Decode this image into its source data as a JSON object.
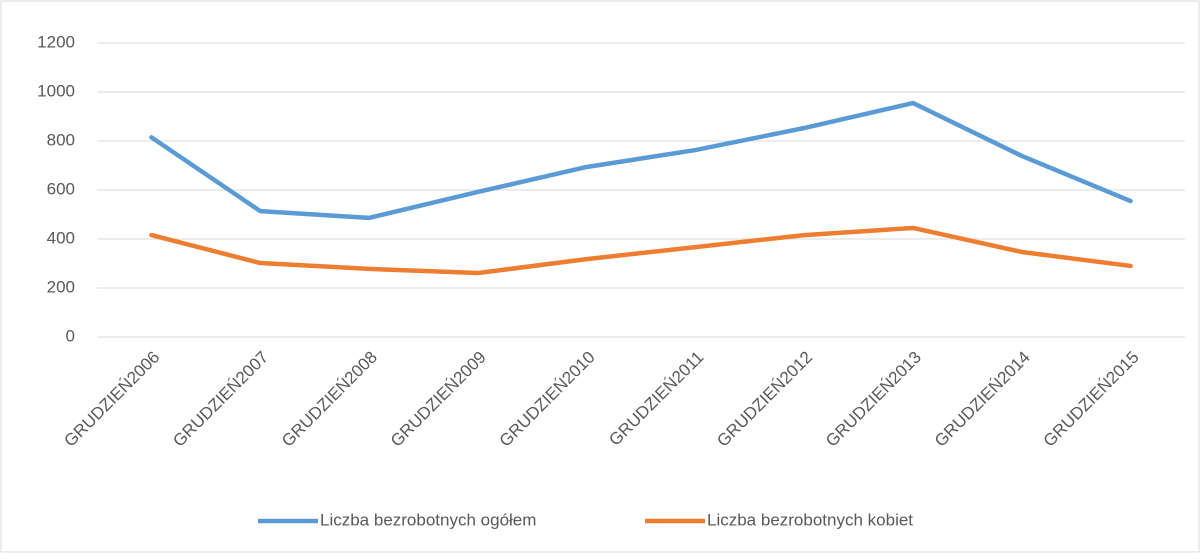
{
  "chart_data": {
    "type": "line",
    "categories": [
      "GRUDZIEŃ2006",
      "GRUDZIEŃ2007",
      "GRUDZIEŃ2008",
      "GRUDZIEŃ2009",
      "GRUDZIEŃ2010",
      "GRUDZIEŃ2011",
      "GRUDZIEŃ2012",
      "GRUDZIEŃ2013",
      "GRUDZIEŃ2014",
      "GRUDZIEŃ2015"
    ],
    "series": [
      {
        "name": "Liczba bezrobotnych ogółem",
        "color": "#5b9bd5",
        "values": [
          815,
          514,
          486,
          592,
          694,
          763,
          853,
          955,
          739,
          555
        ]
      },
      {
        "name": "Liczba bezrobotnych kobiet",
        "color": "#ed7d31",
        "values": [
          416,
          302,
          278,
          261,
          318,
          367,
          416,
          445,
          347,
          290
        ]
      }
    ],
    "ylim": [
      0,
      1200
    ],
    "yticks": [
      0,
      200,
      400,
      600,
      800,
      1000,
      1200
    ],
    "grid": true,
    "legend": "bottom"
  }
}
